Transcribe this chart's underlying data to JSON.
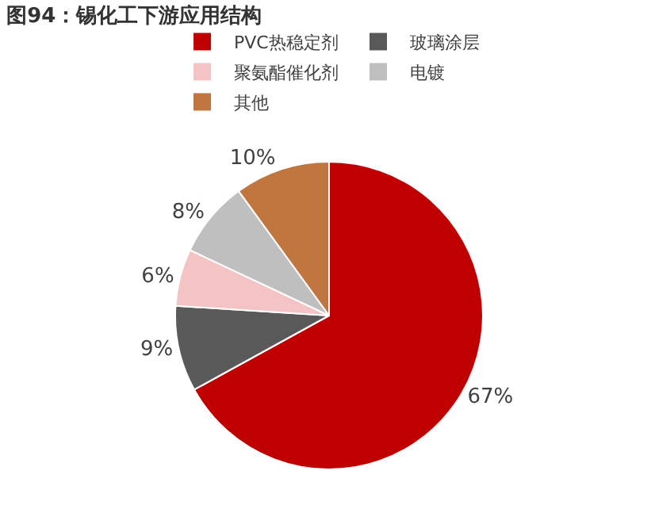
{
  "chart_data": {
    "type": "pie",
    "title": "图94：锡化工下游应用结构",
    "categories": [
      "PVC热稳定剂",
      "玻璃涂层",
      "聚氨酯催化剂",
      "电镀",
      "其他"
    ],
    "values": [
      67,
      9,
      6,
      8,
      10
    ],
    "colors": [
      "#c00000",
      "#595959",
      "#f4c4c4",
      "#bfbfbf",
      "#c0763e"
    ],
    "value_labels": [
      "67%",
      "9%",
      "6%",
      "8%",
      "10%"
    ],
    "legend": "top"
  }
}
